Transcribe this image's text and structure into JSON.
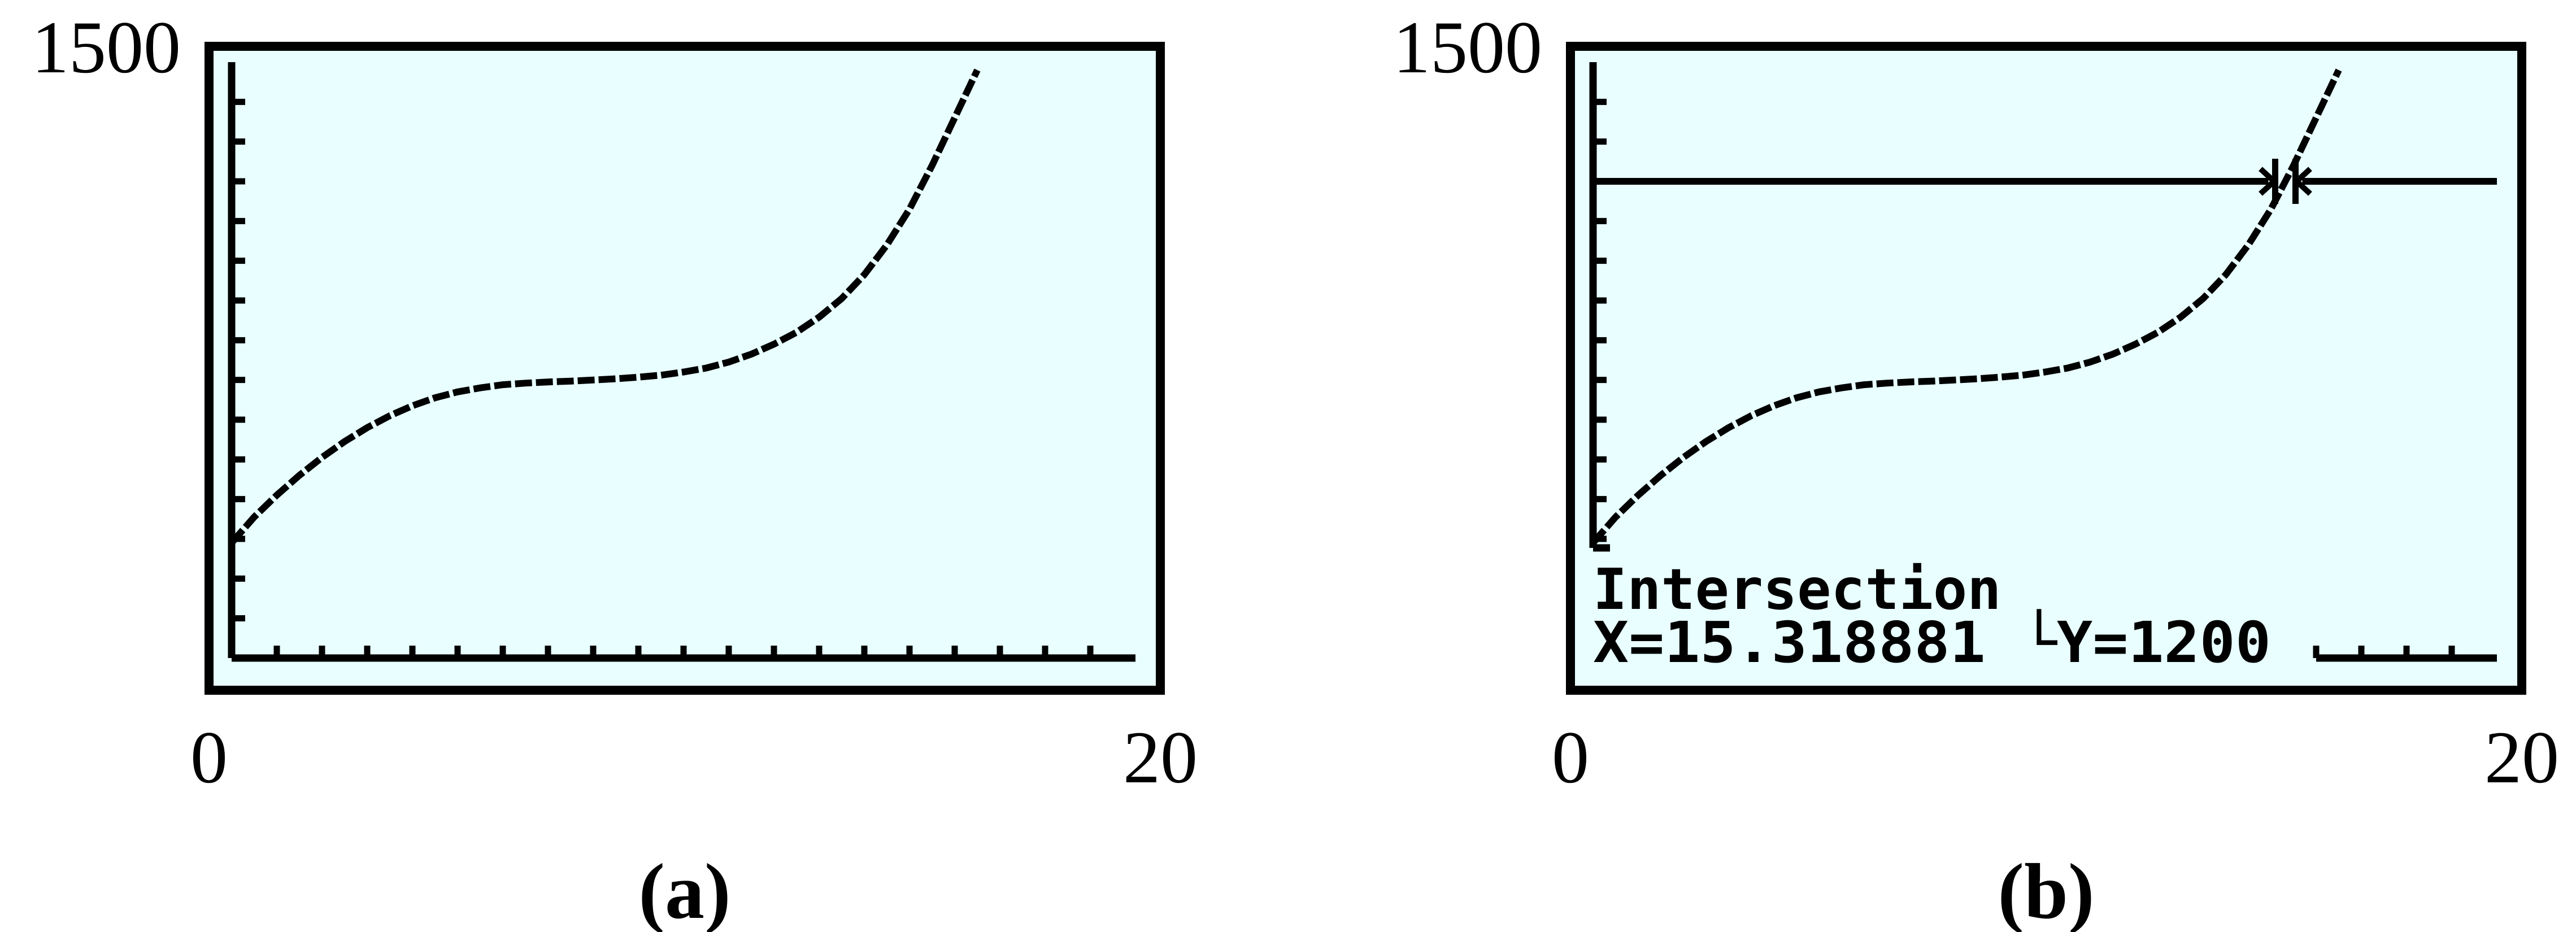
{
  "colors": {
    "screen": "#e8feff",
    "ink": "#000000",
    "page": "#ffffff"
  },
  "chart_data": [
    {
      "type": "line",
      "caption": "(a)",
      "xlim": [
        0,
        20
      ],
      "ylim": [
        0,
        1500
      ],
      "x_tick_labels": [
        "0",
        "20"
      ],
      "y_tick_labels": [
        "1500"
      ],
      "tick_marks": "x every 1 unit, y every 100 units",
      "series": [
        {
          "x": [
            0,
            0.5,
            1,
            1.5,
            2,
            2.5,
            3,
            3.5,
            4,
            4.5,
            5,
            5.5,
            6,
            6.5,
            7,
            7.5,
            8,
            8.5,
            9,
            9.5,
            10,
            10.5,
            11,
            11.5,
            12,
            12.5,
            13,
            13.5,
            14,
            14.5,
            15,
            15.5,
            16,
            16.5
          ],
          "y": [
            290,
            355,
            410,
            460,
            505,
            545,
            580,
            610,
            635,
            655,
            670,
            680,
            688,
            692,
            695,
            697,
            700,
            703,
            707,
            712,
            720,
            730,
            745,
            765,
            790,
            820,
            858,
            905,
            965,
            1040,
            1130,
            1240,
            1360,
            1480
          ]
        }
      ]
    },
    {
      "type": "line",
      "caption": "(b)",
      "xlim": [
        0,
        20
      ],
      "ylim": [
        0,
        1500
      ],
      "x_tick_labels": [
        "0",
        "20"
      ],
      "y_tick_labels": [
        "1500"
      ],
      "tick_marks": "x every 1 unit, y every 100 units",
      "series": [
        {
          "x": [
            0,
            0.5,
            1,
            1.5,
            2,
            2.5,
            3,
            3.5,
            4,
            4.5,
            5,
            5.5,
            6,
            6.5,
            7,
            7.5,
            8,
            8.5,
            9,
            9.5,
            10,
            10.5,
            11,
            11.5,
            12,
            12.5,
            13,
            13.5,
            14,
            14.5,
            15,
            15.5,
            16,
            16.5
          ],
          "y": [
            290,
            355,
            410,
            460,
            505,
            545,
            580,
            610,
            635,
            655,
            670,
            680,
            688,
            692,
            695,
            697,
            700,
            703,
            707,
            712,
            720,
            730,
            745,
            765,
            790,
            820,
            858,
            905,
            965,
            1040,
            1130,
            1240,
            1360,
            1480
          ]
        },
        {
          "type": "hline",
          "y": 1200
        }
      ],
      "intersection": {
        "x": 15.318881,
        "y": 1200
      },
      "screen_text": {
        "line1": "Intersection",
        "line2": "X=15.318881 └Y=1200"
      }
    }
  ]
}
